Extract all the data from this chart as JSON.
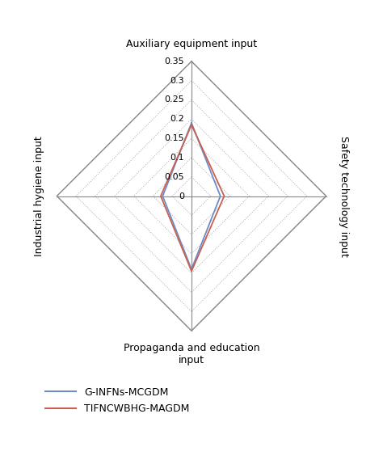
{
  "axes_labels": [
    "Auxiliary equipment input",
    "Safety technology input",
    "Propaganda and education\ninput",
    "Industrial hygiene input"
  ],
  "grid_values": [
    0,
    0.05,
    0.1,
    0.15,
    0.2,
    0.25,
    0.3,
    0.35
  ],
  "tick_labels": [
    "0",
    "0.05",
    "0.1",
    "0.15",
    "0.2",
    "0.25",
    "0.3",
    "0.35"
  ],
  "max_value": 0.35,
  "series": [
    {
      "name": "G-INFNs-MCGDM",
      "color": "#6b8cc8",
      "values": [
        0.19,
        0.075,
        0.19,
        0.075
      ]
    },
    {
      "name": "TIFNCWBHG-MAGDM",
      "color": "#c86050",
      "values": [
        0.185,
        0.085,
        0.195,
        0.08
      ]
    }
  ],
  "background_color": "#ffffff",
  "grid_color": "#aaaaaa",
  "spine_color": "#888888",
  "label_fontsize": 9,
  "tick_fontsize": 8,
  "legend_fontsize": 9,
  "figsize": [
    4.74,
    5.64
  ],
  "dpi": 100
}
